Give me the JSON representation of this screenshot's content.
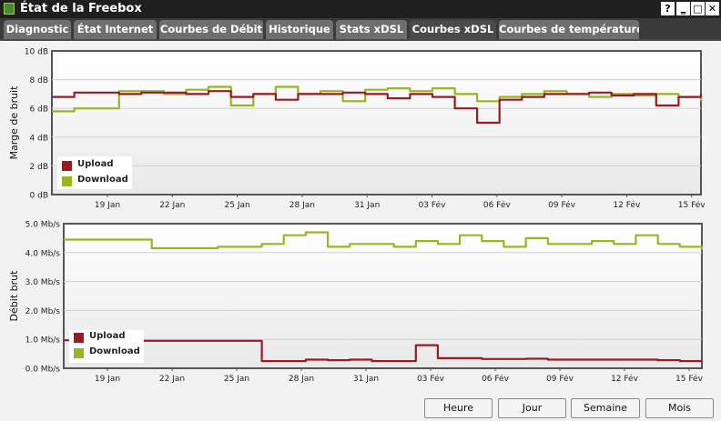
{
  "window": {
    "title": "État de la Freebox",
    "help": "?",
    "minimize": "‗",
    "maximize": "□",
    "close": "✕"
  },
  "tabs": [
    {
      "label": "Diagnostic"
    },
    {
      "label": "État Internet"
    },
    {
      "label": "Courbes de Débit"
    },
    {
      "label": "Historique"
    },
    {
      "label": "Stats xDSL"
    },
    {
      "label": "Courbes xDSL",
      "active": true
    },
    {
      "label": "Courbes de température"
    }
  ],
  "colors": {
    "upload": "#9a1b25",
    "download": "#99b520"
  },
  "chart_data": [
    {
      "type": "line",
      "ylabel": "Marge de bruit",
      "ylim": [
        0,
        10
      ],
      "yticks": [
        "0 dB",
        "2 dB",
        "4 dB",
        "6 dB",
        "8 dB",
        "10 dB"
      ],
      "xticks": [
        "19 Jan",
        "22 Jan",
        "25 Jan",
        "28 Jan",
        "31 Jan",
        "03 Fév",
        "06 Fév",
        "09 Fév",
        "12 Fév",
        "15 Fév"
      ],
      "grid": true,
      "legend": "bottom-left",
      "x_days": [
        0,
        1,
        2,
        3,
        4,
        5,
        6,
        7,
        8,
        9,
        10,
        11,
        12,
        13,
        14,
        15,
        16,
        17,
        18,
        19,
        20,
        21,
        22,
        23,
        24,
        25,
        26,
        27,
        28,
        29
      ],
      "series": [
        {
          "name": "Upload",
          "color": "#9a1b25",
          "values": [
            6.8,
            7.1,
            7.1,
            7.0,
            7.1,
            7.1,
            7.0,
            7.2,
            6.8,
            7.0,
            6.6,
            7.0,
            7.0,
            7.1,
            7.0,
            6.7,
            7.0,
            6.8,
            6.0,
            5.0,
            6.6,
            6.8,
            7.0,
            7.0,
            7.1,
            6.9,
            7.0,
            6.2,
            6.8,
            7.0
          ]
        },
        {
          "name": "Download",
          "color": "#99b520",
          "values": [
            5.8,
            6.0,
            6.0,
            7.2,
            7.2,
            7.0,
            7.3,
            7.5,
            6.2,
            7.0,
            7.5,
            7.0,
            7.2,
            6.5,
            7.3,
            7.4,
            7.2,
            7.4,
            7.0,
            6.5,
            6.8,
            7.0,
            7.2,
            7.0,
            6.8,
            7.0,
            6.9,
            7.0,
            6.8,
            6.5
          ]
        }
      ]
    },
    {
      "type": "line",
      "ylabel": "Débit brut",
      "ylim": [
        0,
        5
      ],
      "yticks": [
        "0.0 Mb/s",
        "1.0 Mb/s",
        "2.0 Mb/s",
        "3.0 Mb/s",
        "4.0 Mb/s",
        "5.0 Mb/s"
      ],
      "xticks": [
        "19 Jan",
        "22 Jan",
        "25 Jan",
        "28 Jan",
        "31 Jan",
        "03 Fév",
        "06 Fév",
        "09 Fév",
        "12 Fév",
        "15 Fév"
      ],
      "grid": true,
      "legend": "bottom-left",
      "x_days": [
        0,
        1,
        2,
        3,
        4,
        5,
        6,
        7,
        8,
        9,
        10,
        11,
        12,
        13,
        14,
        15,
        16,
        17,
        18,
        19,
        20,
        21,
        22,
        23,
        24,
        25,
        26,
        27,
        28,
        29
      ],
      "series": [
        {
          "name": "Upload",
          "color": "#9a1b25",
          "values": [
            0.97,
            0.97,
            0.97,
            0.95,
            0.95,
            0.95,
            0.95,
            0.95,
            0.95,
            0.25,
            0.25,
            0.3,
            0.28,
            0.3,
            0.25,
            0.25,
            0.8,
            0.35,
            0.35,
            0.32,
            0.32,
            0.33,
            0.3,
            0.3,
            0.3,
            0.3,
            0.3,
            0.28,
            0.25,
            0.25
          ]
        },
        {
          "name": "Download",
          "color": "#99b520",
          "values": [
            4.45,
            4.45,
            4.45,
            4.45,
            4.15,
            4.15,
            4.15,
            4.2,
            4.2,
            4.3,
            4.6,
            4.7,
            4.2,
            4.3,
            4.3,
            4.2,
            4.4,
            4.3,
            4.6,
            4.4,
            4.2,
            4.5,
            4.3,
            4.3,
            4.4,
            4.3,
            4.6,
            4.3,
            4.2,
            4.1
          ]
        }
      ]
    }
  ],
  "buttons": {
    "hour": "Heure",
    "day": "Jour",
    "week": "Semaine",
    "month": "Mois"
  }
}
